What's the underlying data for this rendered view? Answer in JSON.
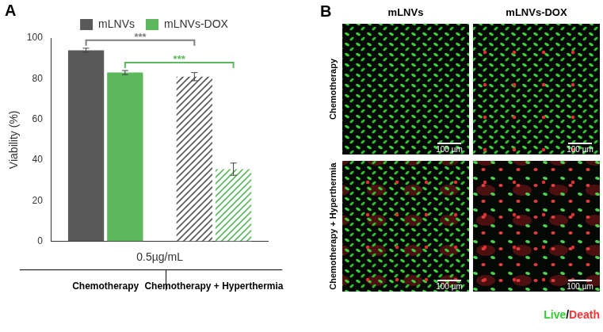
{
  "chart_data": {
    "type": "bar",
    "panel_label": "A",
    "categories": [
      "Chemotherapy",
      "Chemotherapy + Hyperthermia"
    ],
    "x_label": "0.5µg/mL",
    "y_label": "Viability (%)",
    "series": [
      {
        "name": "mLNVs",
        "color": "#595959",
        "values": [
          94,
          81
        ],
        "errors": [
          1,
          2
        ]
      },
      {
        "name": "mLNVs-DOX",
        "color": "#5cb85c",
        "values": [
          83,
          35.5
        ],
        "errors": [
          1,
          3
        ]
      }
    ],
    "ylim": [
      0,
      100
    ],
    "yticks": [
      0,
      20,
      40,
      60,
      80,
      100
    ],
    "grid": false,
    "legend": "top",
    "significance": [
      {
        "series": "mLNVs",
        "label": "***",
        "color": "#7f7f7f"
      },
      {
        "series": "mLNVs-DOX",
        "label": "***",
        "color": "#5cb85c"
      }
    ]
  },
  "micrographs": {
    "panel_label": "B",
    "columns": [
      "mLNVs",
      "mLNVs-DOX"
    ],
    "rows": [
      "Chemotherapy",
      "Chemotherapy + Hyperthermia"
    ],
    "scale_bar": "100 µm",
    "stain_legend": [
      {
        "text": "Live",
        "color": "#33cc33"
      },
      {
        "text": "/",
        "color": "#000000"
      },
      {
        "text": "Death",
        "color": "#ff3333"
      }
    ]
  }
}
